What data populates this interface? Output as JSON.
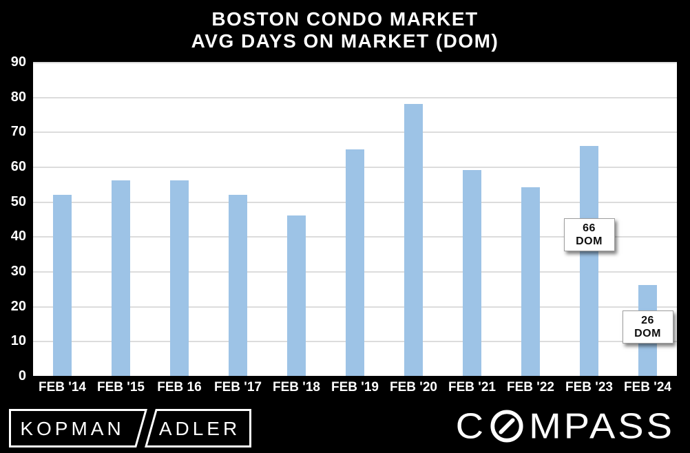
{
  "title": {
    "line1": "BOSTON CONDO MARKET",
    "line2": "AVG DAYS ON MARKET (DOM)"
  },
  "chart_data": {
    "type": "bar",
    "title": "BOSTON CONDO MARKET AVG DAYS ON MARKET (DOM)",
    "categories": [
      "FEB '14",
      "FEB '15",
      "FEB 16",
      "FEB '17",
      "FEB '18",
      "FEB '19",
      "FEB '20",
      "FEB '21",
      "FEB '22",
      "FEB '23",
      "FEB '24"
    ],
    "values": [
      52,
      56,
      56,
      52,
      46,
      65,
      78,
      59,
      54,
      66,
      26
    ],
    "xlabel": "",
    "ylabel": "",
    "ylim": [
      0,
      90
    ],
    "yticks": [
      0,
      10,
      20,
      30,
      40,
      50,
      60,
      70,
      80,
      90
    ],
    "grid": true,
    "legend": "none",
    "bar_color": "#9DC3E6",
    "plot_bg": "#FFFFFF",
    "page_bg": "#000000",
    "gridline_color": "#DCDCDC",
    "annotations": [
      {
        "category": "FEB '23",
        "lines": [
          "66",
          "DOM"
        ],
        "anchor_value": 40.5
      },
      {
        "category": "FEB '24",
        "lines": [
          "26",
          "DOM"
        ],
        "anchor_value": 14
      }
    ]
  },
  "footer": {
    "kopman_adler": {
      "left_word": "KOPMAN",
      "right_word": "ADLER"
    },
    "compass": {
      "first_letter": "C",
      "rest_letters": "MPASS"
    }
  }
}
